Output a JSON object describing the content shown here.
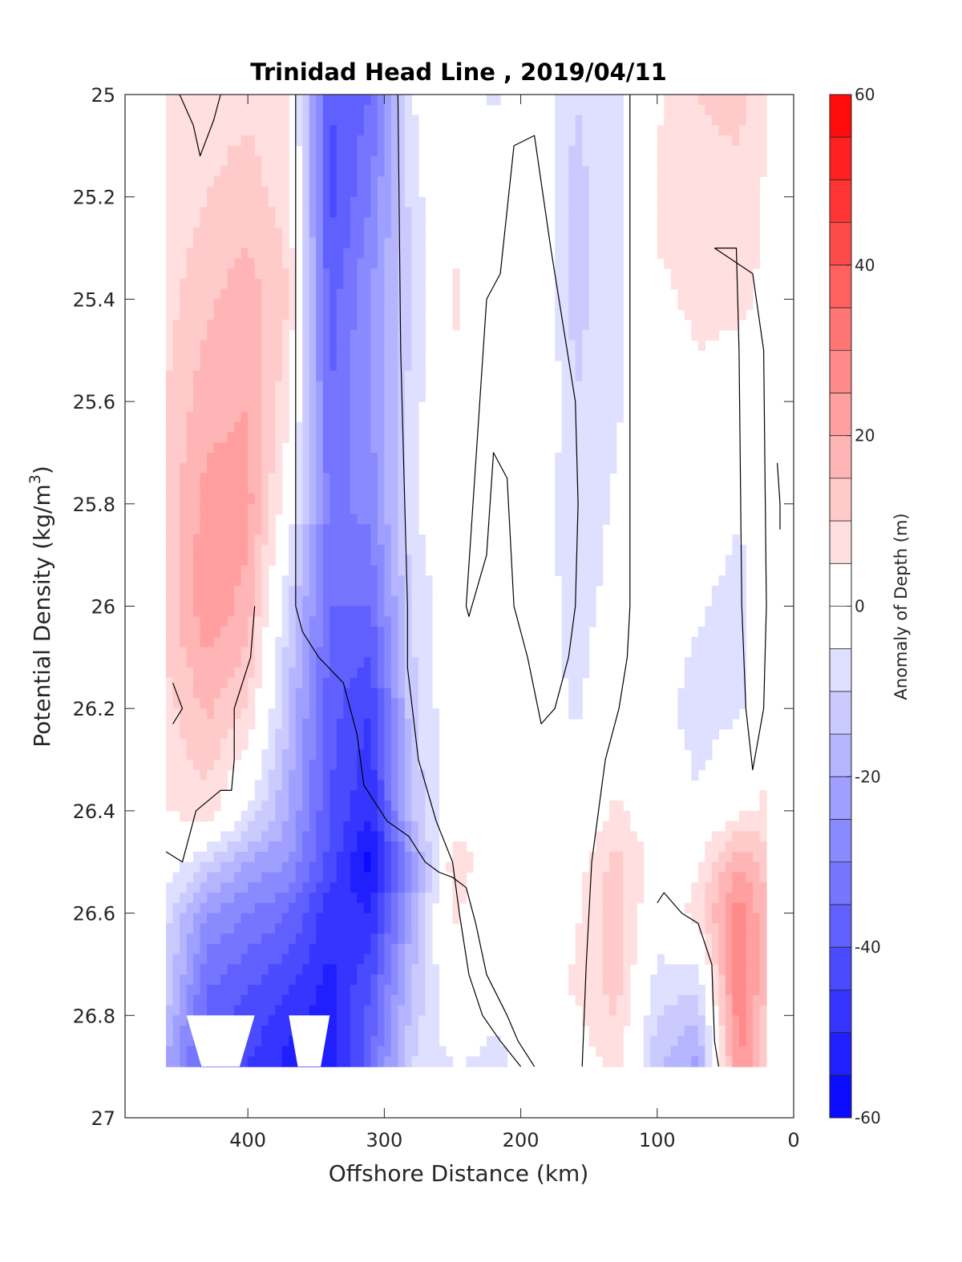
{
  "chart_data": {
    "type": "heatmap",
    "title": "Trinidad Head Line , 2019/04/11",
    "xlabel": "Offshore Distance (km)",
    "ylabel_main": "Potential Density (kg/m",
    "ylabel_sup": "3",
    "ylabel_end": ")",
    "xlim": [
      490,
      0
    ],
    "ylim": [
      25,
      27
    ],
    "x_reversed": true,
    "y_reversed": true,
    "xticks": [
      400,
      300,
      200,
      100,
      0
    ],
    "xtick_labels": [
      "400",
      "300",
      "200",
      "100",
      "0"
    ],
    "yticks": [
      25,
      25.2,
      25.4,
      25.6,
      25.8,
      26,
      26.2,
      26.4,
      26.6,
      26.8,
      27
    ],
    "ytick_labels": [
      "25",
      "25.2",
      "25.4",
      "25.6",
      "25.8",
      "26",
      "26.2",
      "26.4",
      "26.6",
      "26.8",
      "27"
    ],
    "colorbar": {
      "label": "Anomaly of Depth (m)",
      "range": [
        -60,
        60
      ],
      "level_step": 5,
      "ticks": [
        60,
        40,
        20,
        0,
        -20,
        -40,
        -60
      ],
      "tick_labels": [
        "60",
        "40",
        "20",
        "0",
        "-20",
        "-40",
        "-60"
      ],
      "negative_color": "#0000ff",
      "positive_color": "#ff0000",
      "zero_color": "#ffffff"
    },
    "data_extent": {
      "x": [
        460,
        20
      ],
      "y": [
        25,
        26.9
      ]
    },
    "columns": [
      {
        "x": 460,
        "anomaly": [
          5,
          6,
          8,
          10,
          12,
          12,
          8,
          5,
          0,
          -8,
          -12,
          -20
        ]
      },
      {
        "x": 430,
        "anomaly": [
          8,
          10,
          14,
          18,
          22,
          24,
          16,
          8,
          -10,
          -25,
          -35,
          -40
        ]
      },
      {
        "x": 400,
        "anomaly": [
          9,
          12,
          18,
          20,
          22,
          18,
          10,
          -5,
          -20,
          -30,
          -40,
          -45
        ]
      },
      {
        "x": 370,
        "anomaly": [
          6,
          8,
          10,
          6,
          0,
          -10,
          -15,
          -20,
          -25,
          -35,
          -45,
          -52
        ]
      },
      {
        "x": 340,
        "anomaly": [
          -40,
          -42,
          -38,
          -35,
          -32,
          -35,
          -38,
          -40,
          -42,
          -48,
          -52,
          -55
        ]
      },
      {
        "x": 310,
        "anomaly": [
          -35,
          -30,
          -25,
          -25,
          -28,
          -35,
          -45,
          -50,
          -58,
          -50,
          -40,
          -35
        ]
      },
      {
        "x": 280,
        "anomaly": [
          -5,
          -8,
          -10,
          -8,
          -6,
          -10,
          -12,
          -15,
          -25,
          -20,
          -15,
          -10
        ]
      },
      {
        "x": 250,
        "anomaly": [
          0,
          4,
          6,
          4,
          2,
          0,
          0,
          2,
          8,
          6,
          2,
          -5
        ]
      },
      {
        "x": 220,
        "anomaly": [
          -6,
          -2,
          0,
          2,
          0,
          0,
          -2,
          0,
          2,
          0,
          -4,
          -6
        ]
      },
      {
        "x": 190,
        "anomaly": [
          0,
          0,
          2,
          4,
          0,
          0,
          0,
          0,
          0,
          0,
          0,
          -4
        ]
      },
      {
        "x": 160,
        "anomaly": [
          -10,
          -12,
          -12,
          -10,
          -10,
          -8,
          -6,
          -2,
          2,
          4,
          6,
          0
        ]
      },
      {
        "x": 130,
        "anomaly": [
          -6,
          -6,
          -6,
          -6,
          -4,
          -2,
          0,
          6,
          12,
          14,
          12,
          8
        ]
      },
      {
        "x": 100,
        "anomaly": [
          4,
          6,
          4,
          2,
          0,
          -2,
          -2,
          0,
          2,
          -2,
          -8,
          -14
        ]
      },
      {
        "x": 70,
        "anomaly": [
          10,
          8,
          6,
          4,
          0,
          -4,
          -8,
          -4,
          4,
          8,
          -10,
          -22
        ]
      },
      {
        "x": 40,
        "anomaly": [
          12,
          8,
          6,
          2,
          -4,
          -8,
          -6,
          4,
          20,
          28,
          30,
          26
        ]
      },
      {
        "x": 20,
        "anomaly": [
          6,
          4,
          4,
          2,
          0,
          0,
          2,
          6,
          12,
          16,
          14,
          10
        ]
      }
    ],
    "column_y": [
      25,
      25.2,
      25.4,
      25.6,
      25.8,
      26,
      26.2,
      26.4,
      26.5,
      26.6,
      26.75,
      26.9
    ],
    "nan_gaps": [
      {
        "x": [
          445,
          395
        ],
        "y_top": 26.8,
        "y_bottom": 26.9
      },
      {
        "x": [
          370,
          340
        ],
        "y_top": 26.8,
        "y_bottom": 26.9
      }
    ],
    "zero_contours": [
      [
        [
          450,
          25
        ],
        [
          440,
          25.06
        ],
        [
          435,
          25.12
        ],
        [
          425,
          25.05
        ],
        [
          420,
          25
        ]
      ],
      [
        [
          365,
          25
        ],
        [
          365,
          25.5
        ],
        [
          365,
          26
        ],
        [
          360,
          26.05
        ],
        [
          348,
          26.1
        ],
        [
          330,
          26.15
        ],
        [
          320,
          26.25
        ],
        [
          315,
          26.35
        ],
        [
          298,
          26.42
        ],
        [
          282,
          26.45
        ],
        [
          270,
          26.5
        ],
        [
          260,
          26.52
        ],
        [
          250,
          26.53
        ],
        [
          240,
          26.55
        ],
        [
          233,
          26.62
        ],
        [
          225,
          26.72
        ],
        [
          210,
          26.8
        ],
        [
          202,
          26.85
        ],
        [
          190,
          26.9
        ]
      ],
      [
        [
          290,
          25
        ],
        [
          288,
          25.5
        ],
        [
          283,
          26
        ],
        [
          283,
          26.12
        ],
        [
          275,
          26.3
        ],
        [
          262,
          26.42
        ],
        [
          250,
          26.5
        ],
        [
          245,
          26.6
        ],
        [
          238,
          26.72
        ],
        [
          228,
          26.8
        ],
        [
          215,
          26.85
        ],
        [
          200,
          26.9
        ]
      ],
      [
        [
          455,
          26.15
        ],
        [
          448,
          26.2
        ],
        [
          455,
          26.23
        ]
      ],
      [
        [
          460,
          26.48
        ],
        [
          448,
          26.5
        ],
        [
          438,
          26.4
        ],
        [
          420,
          26.36
        ],
        [
          412,
          26.36
        ],
        [
          410,
          26.3
        ],
        [
          410,
          26.2
        ],
        [
          398,
          26.1
        ],
        [
          395,
          26
        ]
      ],
      [
        [
          205,
          25.1
        ],
        [
          190,
          25.08
        ],
        [
          178,
          25.3
        ],
        [
          160,
          25.6
        ],
        [
          158,
          25.8
        ],
        [
          160,
          26
        ],
        [
          165,
          26.1
        ],
        [
          175,
          26.2
        ],
        [
          185,
          26.23
        ],
        [
          195,
          26.1
        ],
        [
          205,
          26
        ],
        [
          210,
          25.75
        ],
        [
          220,
          25.7
        ],
        [
          225,
          25.9
        ],
        [
          238,
          26.02
        ],
        [
          240,
          26
        ],
        [
          230,
          25.6
        ],
        [
          225,
          25.4
        ],
        [
          215,
          25.35
        ],
        [
          205,
          25.1
        ]
      ],
      [
        [
          120,
          25
        ],
        [
          120,
          25.5
        ],
        [
          120,
          26
        ],
        [
          122,
          26.1
        ],
        [
          128,
          26.2
        ],
        [
          138,
          26.3
        ],
        [
          148,
          26.5
        ],
        [
          152,
          26.7
        ],
        [
          155,
          26.9
        ]
      ],
      [
        [
          100,
          26.58
        ],
        [
          95,
          26.56
        ],
        [
          82,
          26.6
        ],
        [
          70,
          26.62
        ],
        [
          60,
          26.7
        ],
        [
          58,
          26.85
        ],
        [
          55,
          26.9
        ]
      ],
      [
        [
          58,
          25.3
        ],
        [
          42,
          25.3
        ],
        [
          40,
          25.5
        ],
        [
          38,
          26
        ],
        [
          35,
          26.2
        ],
        [
          30,
          26.32
        ],
        [
          22,
          26.2
        ],
        [
          20,
          26
        ],
        [
          22,
          25.5
        ],
        [
          30,
          25.35
        ],
        [
          58,
          25.3
        ]
      ],
      [
        [
          12,
          25.72
        ],
        [
          10,
          25.8
        ],
        [
          10,
          25.85
        ]
      ]
    ]
  }
}
